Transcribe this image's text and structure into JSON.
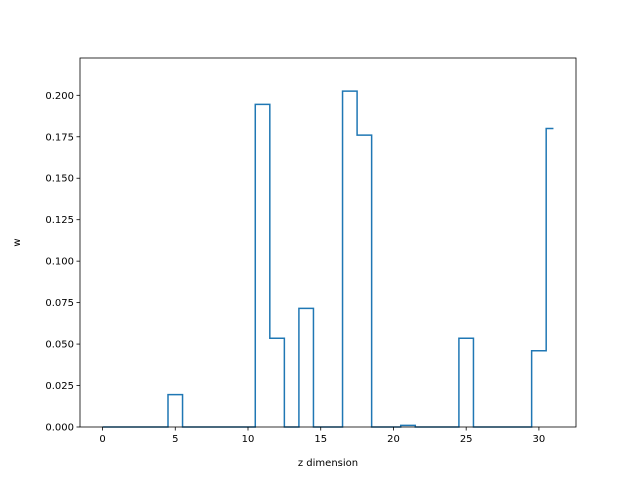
{
  "chart_data": {
    "type": "line",
    "drawstyle": "steps-mid",
    "xlabel": "z dimension",
    "ylabel": "w",
    "xlim": [
      -1.55,
      32.55
    ],
    "ylim": [
      0.0,
      0.2225
    ],
    "xticks": [
      0,
      5,
      10,
      15,
      20,
      25,
      30
    ],
    "xtick_labels": [
      "0",
      "5",
      "10",
      "15",
      "20",
      "25",
      "30"
    ],
    "yticks": [
      0.0,
      0.025,
      0.05,
      0.075,
      0.1,
      0.125,
      0.15,
      0.175,
      0.2
    ],
    "ytick_labels": [
      "0.000",
      "0.025",
      "0.050",
      "0.075",
      "0.100",
      "0.125",
      "0.150",
      "0.175",
      "0.200"
    ],
    "grid": false,
    "color": "#1f77b4",
    "series": [
      {
        "x": [
          0,
          1,
          2,
          3,
          4,
          5,
          6,
          7,
          8,
          9,
          10,
          11,
          12,
          13,
          14,
          15,
          16,
          17,
          18,
          19,
          20,
          21,
          22,
          23,
          24,
          25,
          26,
          27,
          28,
          29,
          30,
          31
        ],
        "y": [
          0,
          0,
          0,
          0,
          0,
          0.0195,
          0,
          0,
          0,
          0,
          0,
          0.1945,
          0.0535,
          0,
          0.0715,
          0,
          0,
          0.2025,
          0.176,
          0,
          0,
          0.001,
          0,
          0,
          0,
          0.0535,
          0,
          0,
          0,
          0,
          0.046,
          0.18
        ]
      }
    ]
  }
}
